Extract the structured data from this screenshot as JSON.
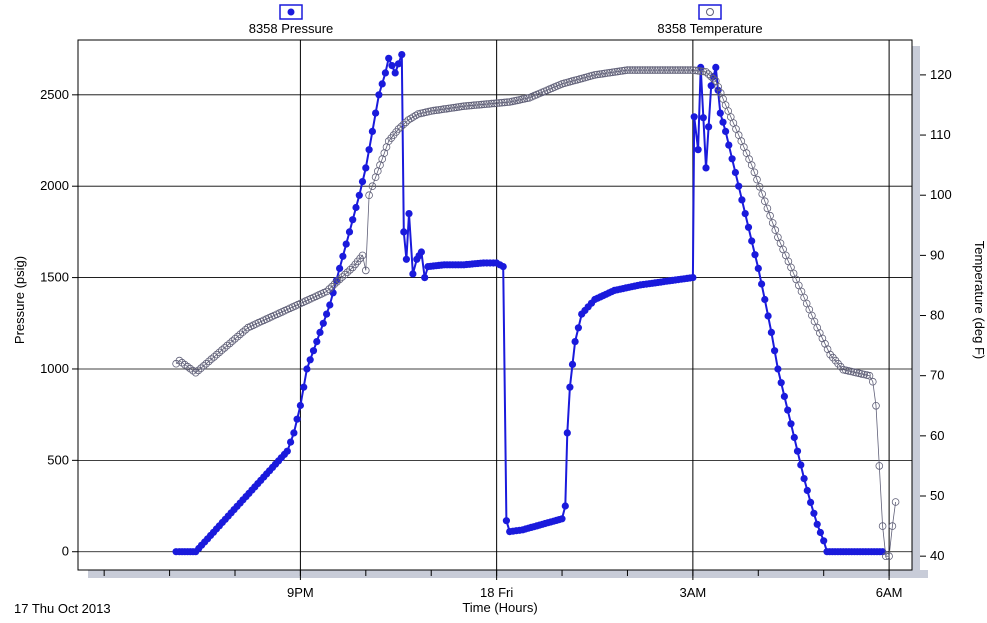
{
  "colors": {
    "pressure": "#1a1adc",
    "temperature": "#606078",
    "frame_shadow": "#c8ccd8",
    "grid": "#000000"
  },
  "chart_data": {
    "type": "scatter",
    "title": "",
    "xlabel": "Time (Hours)",
    "ylabel_left": "Pressure (psig)",
    "ylabel_right": "Temperature (deg F)",
    "date_label": "17 Thu Oct 2013",
    "x_unit": "hours since 17 Oct 2013 00:00",
    "xlim": [
      17.6,
      30.35
    ],
    "ylim_left": [
      -100,
      2800
    ],
    "ylim_right": [
      37.7,
      125.8
    ],
    "x_ticks": [
      {
        "value": 21,
        "label": "9PM"
      },
      {
        "value": 24,
        "label": "18 Fri"
      },
      {
        "value": 27,
        "label": "3AM"
      },
      {
        "value": 30,
        "label": "6AM"
      }
    ],
    "y_ticks_left": [
      0,
      500,
      1000,
      1500,
      2000,
      2500
    ],
    "y_ticks_right": [
      40,
      50,
      60,
      70,
      80,
      90,
      100,
      110,
      120
    ],
    "legend": [
      {
        "name": "8358 Pressure",
        "marker": "●",
        "position": "top-left"
      },
      {
        "name": "8358 Temperature",
        "marker": "○",
        "position": "top-right"
      }
    ],
    "series": [
      {
        "name": "8358 Pressure",
        "axis": "left",
        "marker": "filled-circle",
        "points": [
          [
            19.1,
            0
          ],
          [
            19.15,
            0
          ],
          [
            19.4,
            0
          ],
          [
            20.8,
            550
          ],
          [
            20.9,
            650
          ],
          [
            21.0,
            800
          ],
          [
            21.1,
            1000
          ],
          [
            21.3,
            1200
          ],
          [
            21.45,
            1350
          ],
          [
            21.6,
            1550
          ],
          [
            21.75,
            1750
          ],
          [
            21.9,
            1950
          ],
          [
            22.0,
            2100
          ],
          [
            22.1,
            2300
          ],
          [
            22.2,
            2500
          ],
          [
            22.3,
            2620
          ],
          [
            22.35,
            2700
          ],
          [
            22.45,
            2620
          ],
          [
            22.55,
            2720
          ],
          [
            22.58,
            1750
          ],
          [
            22.62,
            1600
          ],
          [
            22.66,
            1850
          ],
          [
            22.72,
            1520
          ],
          [
            22.78,
            1600
          ],
          [
            22.85,
            1640
          ],
          [
            22.9,
            1500
          ],
          [
            22.95,
            1560
          ],
          [
            23.2,
            1570
          ],
          [
            23.5,
            1570
          ],
          [
            23.8,
            1580
          ],
          [
            24.0,
            1580
          ],
          [
            24.1,
            1560
          ],
          [
            24.15,
            170
          ],
          [
            24.2,
            110
          ],
          [
            24.4,
            120
          ],
          [
            24.7,
            150
          ],
          [
            25.0,
            180
          ],
          [
            25.05,
            250
          ],
          [
            25.08,
            650
          ],
          [
            25.12,
            900
          ],
          [
            25.2,
            1150
          ],
          [
            25.3,
            1300
          ],
          [
            25.5,
            1380
          ],
          [
            25.8,
            1430
          ],
          [
            26.2,
            1460
          ],
          [
            26.6,
            1480
          ],
          [
            27.0,
            1500
          ],
          [
            27.02,
            2380
          ],
          [
            27.08,
            2200
          ],
          [
            27.12,
            2650
          ],
          [
            27.2,
            2100
          ],
          [
            27.28,
            2550
          ],
          [
            27.35,
            2650
          ],
          [
            27.42,
            2400
          ],
          [
            27.5,
            2300
          ],
          [
            27.6,
            2150
          ],
          [
            27.7,
            2000
          ],
          [
            27.8,
            1850
          ],
          [
            27.9,
            1700
          ],
          [
            28.0,
            1550
          ],
          [
            28.1,
            1380
          ],
          [
            28.2,
            1200
          ],
          [
            28.3,
            1000
          ],
          [
            28.4,
            850
          ],
          [
            28.5,
            700
          ],
          [
            28.6,
            550
          ],
          [
            28.7,
            400
          ],
          [
            28.8,
            270
          ],
          [
            28.9,
            150
          ],
          [
            29.0,
            60
          ],
          [
            29.05,
            0
          ],
          [
            29.3,
            0
          ],
          [
            29.6,
            0
          ],
          [
            29.9,
            0
          ]
        ]
      },
      {
        "name": "8358 Temperature",
        "axis": "right",
        "marker": "open-circle",
        "points": [
          [
            19.1,
            72
          ],
          [
            19.15,
            72.5
          ],
          [
            19.4,
            70.5
          ],
          [
            20.2,
            78
          ],
          [
            20.6,
            80
          ],
          [
            20.8,
            81
          ],
          [
            21.0,
            82
          ],
          [
            21.4,
            84
          ],
          [
            21.6,
            86
          ],
          [
            21.8,
            88
          ],
          [
            21.95,
            90
          ],
          [
            22.0,
            87.5
          ],
          [
            22.05,
            100
          ],
          [
            22.15,
            103
          ],
          [
            22.25,
            106
          ],
          [
            22.35,
            109
          ],
          [
            22.5,
            111
          ],
          [
            22.65,
            112.5
          ],
          [
            22.8,
            113.5
          ],
          [
            23.0,
            114
          ],
          [
            23.5,
            114.8
          ],
          [
            24.0,
            115.3
          ],
          [
            24.2,
            115.5
          ],
          [
            24.5,
            116.2
          ],
          [
            25.0,
            118.5
          ],
          [
            25.5,
            120
          ],
          [
            26.0,
            120.8
          ],
          [
            26.5,
            120.8
          ],
          [
            27.0,
            120.8
          ],
          [
            27.2,
            120.5
          ],
          [
            27.35,
            119
          ],
          [
            27.5,
            115
          ],
          [
            27.7,
            110
          ],
          [
            27.9,
            105
          ],
          [
            28.1,
            99
          ],
          [
            28.3,
            93
          ],
          [
            28.5,
            88
          ],
          [
            28.7,
            83
          ],
          [
            28.9,
            78
          ],
          [
            29.1,
            73.5
          ],
          [
            29.3,
            71
          ],
          [
            29.5,
            70.5
          ],
          [
            29.7,
            70
          ],
          [
            29.75,
            69
          ],
          [
            29.8,
            65
          ],
          [
            29.85,
            55
          ],
          [
            29.9,
            45
          ],
          [
            29.95,
            40
          ],
          [
            30.0,
            40
          ],
          [
            30.05,
            45
          ],
          [
            30.1,
            49
          ]
        ]
      }
    ]
  }
}
